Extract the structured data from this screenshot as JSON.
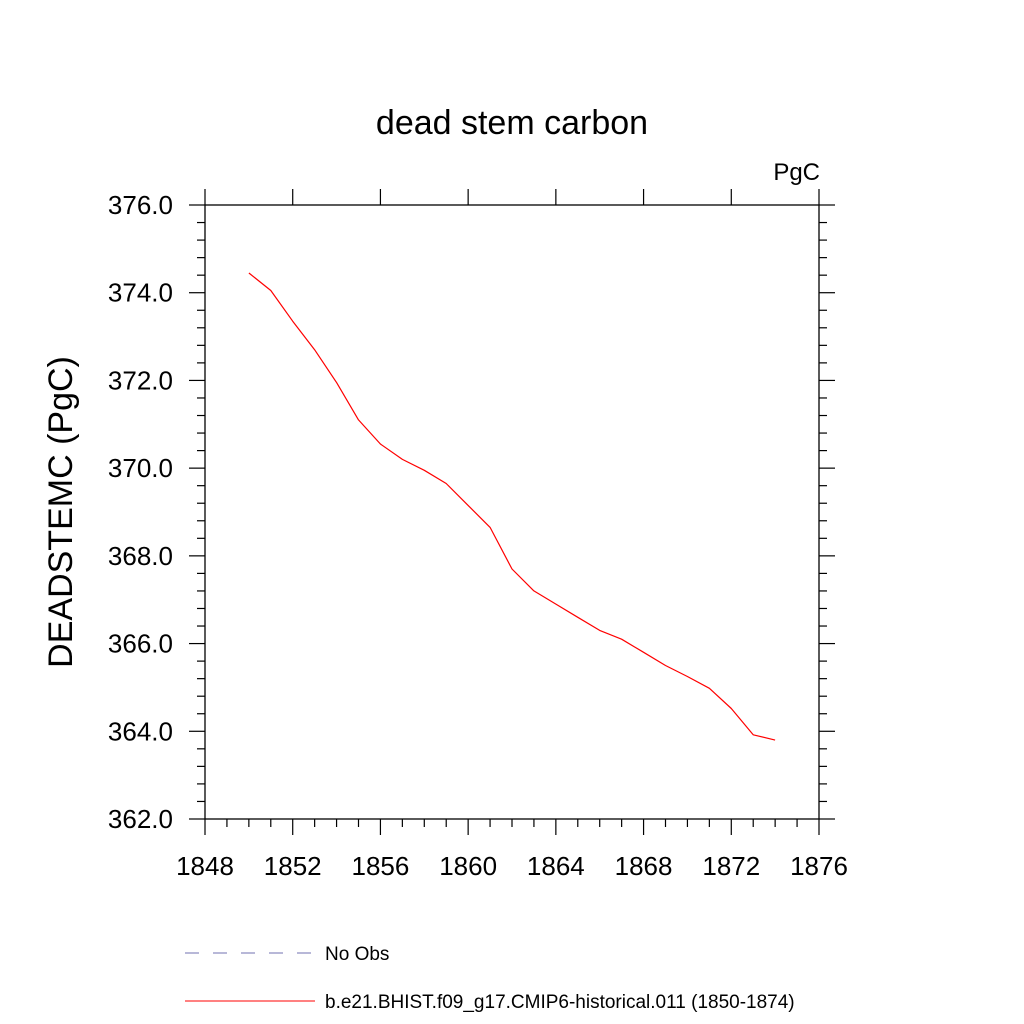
{
  "chart_data": {
    "type": "line",
    "title": "dead stem carbon",
    "units_label": "PgC",
    "xlabel": "",
    "ylabel": "DEADSTEMC  (PgC)",
    "xlim": [
      1848,
      1876
    ],
    "ylim": [
      362.0,
      376.0
    ],
    "x_ticks": [
      "1848",
      "1852",
      "1856",
      "1860",
      "1864",
      "1868",
      "1872",
      "1876"
    ],
    "y_ticks": [
      "362.0",
      "364.0",
      "366.0",
      "368.0",
      "370.0",
      "372.0",
      "374.0",
      "376.0"
    ],
    "grid": false,
    "series": [
      {
        "name": "b.e21.BHIST.f09_g17.CMIP6-historical.011 (1850-1874)",
        "color": "#ff0000",
        "style": "solid",
        "x": [
          1850,
          1851,
          1852,
          1853,
          1854,
          1855,
          1856,
          1857,
          1858,
          1859,
          1860,
          1861,
          1862,
          1863,
          1864,
          1865,
          1866,
          1867,
          1868,
          1869,
          1870,
          1871,
          1872,
          1873,
          1874
        ],
        "y": [
          374.45,
          374.05,
          373.35,
          372.7,
          371.95,
          371.1,
          370.55,
          370.2,
          369.95,
          369.65,
          369.15,
          368.65,
          367.7,
          367.2,
          366.9,
          366.6,
          366.3,
          366.1,
          365.8,
          365.5,
          365.25,
          364.98,
          364.52,
          363.92,
          363.8
        ]
      }
    ],
    "legend": [
      {
        "label": "No Obs",
        "color": "#7070b0",
        "style": "dashed"
      },
      {
        "label": "b.e21.BHIST.f09_g17.CMIP6-historical.011 (1850-1874)",
        "color": "#ff0000",
        "style": "solid"
      }
    ],
    "legend_position": "bottom"
  }
}
